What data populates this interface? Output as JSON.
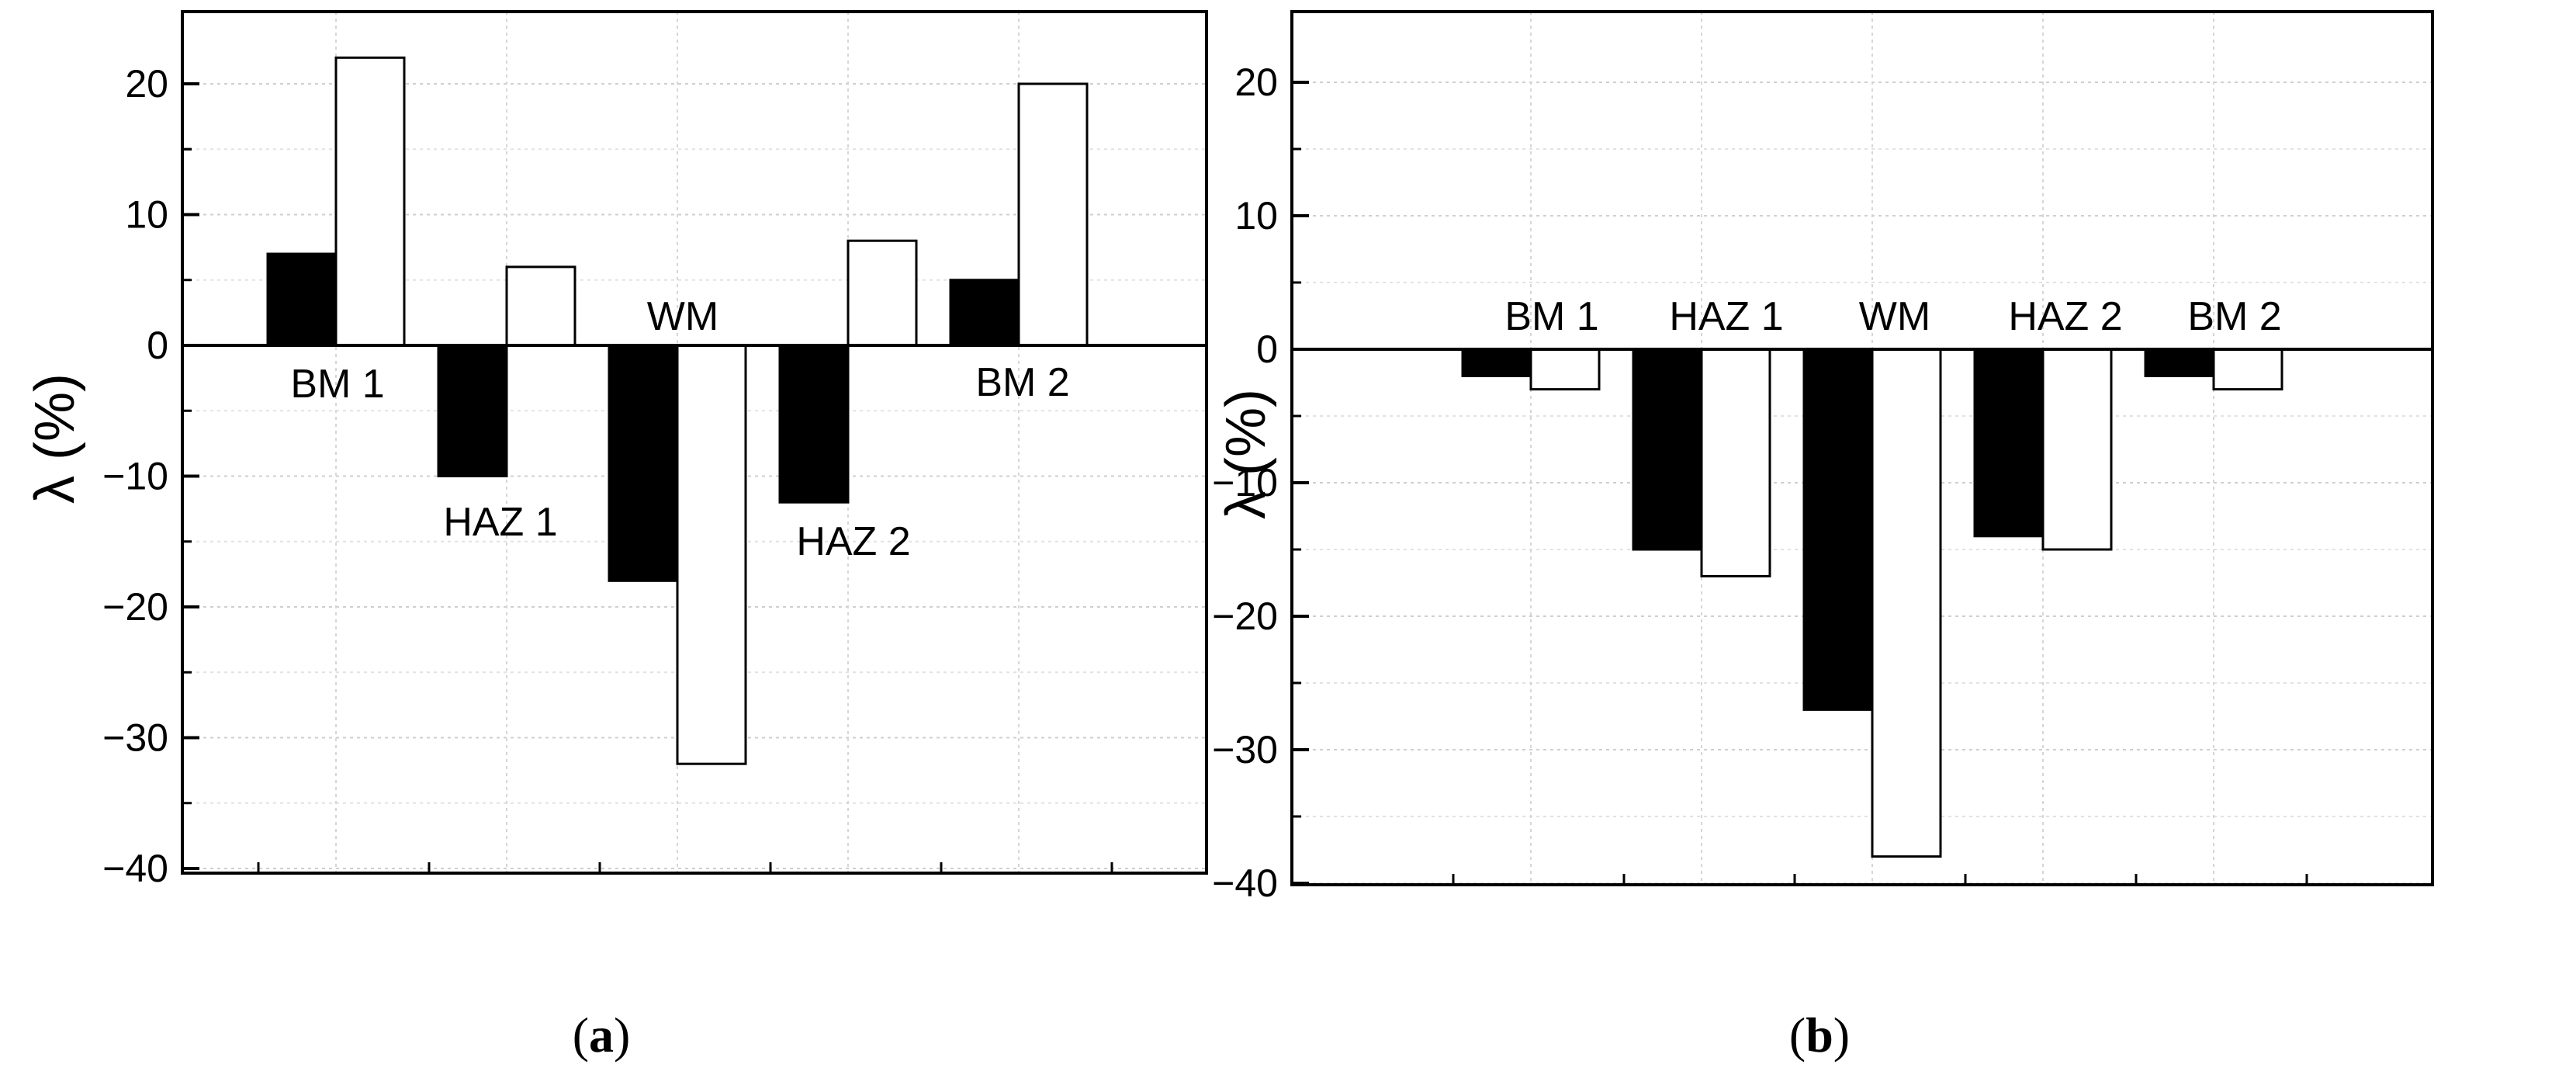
{
  "chart_data": [
    {
      "id": "a",
      "type": "bar",
      "panel_label": "a",
      "ylabel": "λ (%)",
      "ylim": [
        -40,
        25
      ],
      "yticks": [
        20,
        10,
        0,
        -10,
        -20,
        -30,
        -40
      ],
      "grid": true,
      "categories": [
        "BM 1",
        "HAZ 1",
        "WM",
        "HAZ 2",
        "BM 2"
      ],
      "series": [
        {
          "color": "#000000",
          "values": [
            7,
            -10,
            -18,
            -12,
            5
          ]
        },
        {
          "color": "#ffffff",
          "values": [
            22,
            6,
            -32,
            8,
            20
          ]
        }
      ]
    },
    {
      "id": "b",
      "type": "bar",
      "panel_label": "b",
      "ylabel": "λ (%)",
      "ylim": [
        -40,
        25
      ],
      "yticks": [
        20,
        10,
        0,
        -10,
        -20,
        -30,
        -40
      ],
      "grid": true,
      "categories": [
        "BM 1",
        "HAZ 1",
        "WM",
        "HAZ 2",
        "BM 2"
      ],
      "series": [
        {
          "color": "#000000",
          "values": [
            -2,
            -15,
            -27,
            -14,
            -2
          ]
        },
        {
          "color": "#ffffff",
          "values": [
            -3,
            -17,
            -38,
            -15,
            -3
          ]
        }
      ]
    }
  ]
}
